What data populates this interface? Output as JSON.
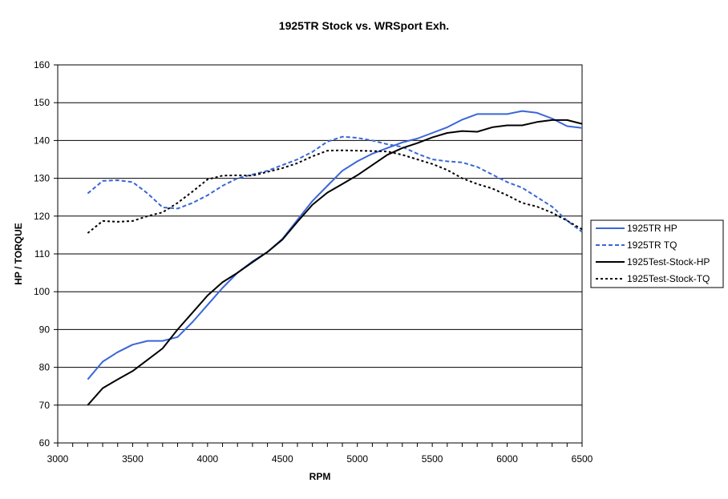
{
  "chart_data": {
    "type": "line",
    "title": "1925TR Stock vs. WRSport Exh.",
    "xlabel": "RPM",
    "ylabel": "HP / TORQUE",
    "xlim": [
      3000,
      6500
    ],
    "ylim": [
      60,
      160
    ],
    "xticks": [
      3000,
      3500,
      4000,
      4500,
      5000,
      5500,
      6000,
      6500
    ],
    "yticks": [
      60,
      70,
      80,
      90,
      100,
      110,
      120,
      130,
      140,
      150,
      160
    ],
    "grid": "horizontal",
    "legend_position": "right",
    "series": [
      {
        "name": "1925TR HP",
        "color": "#3a66d8",
        "style": "solid",
        "x": [
          3200,
          3300,
          3400,
          3500,
          3600,
          3700,
          3800,
          3900,
          4000,
          4100,
          4200,
          4300,
          4400,
          4500,
          4600,
          4700,
          4800,
          4900,
          5000,
          5100,
          5200,
          5300,
          5400,
          5500,
          5600,
          5700,
          5800,
          5900,
          6000,
          6100,
          6200,
          6300,
          6400,
          6500
        ],
        "values": [
          76.8,
          81.5,
          84,
          86,
          87,
          87,
          88,
          92,
          96.5,
          101,
          105,
          108,
          110.5,
          114,
          119,
          124,
          128,
          132,
          134.5,
          136.5,
          138,
          139.5,
          140.5,
          142,
          143.5,
          145.5,
          147,
          147,
          147,
          147.8,
          147.3,
          145.8,
          143.8,
          143.3
        ]
      },
      {
        "name": "1925TR TQ",
        "color": "#3a66d8",
        "style": "dashed",
        "x": [
          3200,
          3300,
          3400,
          3500,
          3600,
          3700,
          3800,
          3900,
          4000,
          4100,
          4200,
          4300,
          4400,
          4500,
          4600,
          4700,
          4800,
          4900,
          5000,
          5100,
          5200,
          5300,
          5400,
          5500,
          5600,
          5700,
          5800,
          5900,
          6000,
          6100,
          6200,
          6300,
          6400,
          6500
        ],
        "values": [
          126,
          129.3,
          129.5,
          129,
          126,
          122.3,
          122,
          123.5,
          125.5,
          128,
          130,
          131,
          132,
          133.5,
          135,
          137,
          139.7,
          141,
          140.7,
          140,
          139,
          138.3,
          136.5,
          135,
          134.5,
          134.2,
          133,
          131,
          129,
          127.5,
          125,
          122.5,
          118.8,
          115.8
        ]
      },
      {
        "name": "1925Test-Stock-HP",
        "color": "#000000",
        "style": "solid",
        "x": [
          3200,
          3300,
          3400,
          3500,
          3600,
          3700,
          3800,
          3900,
          4000,
          4100,
          4200,
          4300,
          4400,
          4500,
          4600,
          4700,
          4800,
          4900,
          5000,
          5100,
          5200,
          5300,
          5400,
          5500,
          5600,
          5700,
          5800,
          5900,
          6000,
          6100,
          6200,
          6300,
          6400,
          6500
        ],
        "values": [
          70,
          74.5,
          76.8,
          79,
          82,
          85,
          90,
          94.5,
          99,
          102.5,
          105,
          107.8,
          110.5,
          113.8,
          118.5,
          123,
          126.2,
          128.5,
          130.8,
          133.5,
          136.2,
          138,
          139.3,
          140.8,
          142,
          142.5,
          142.3,
          143.5,
          144,
          144,
          144.9,
          145.4,
          145.4,
          144.4
        ]
      },
      {
        "name": "1925Test-Stock-TQ",
        "color": "#000000",
        "style": "dotted",
        "x": [
          3200,
          3300,
          3400,
          3500,
          3600,
          3700,
          3800,
          3900,
          4000,
          4100,
          4200,
          4300,
          4400,
          4500,
          4600,
          4700,
          4800,
          4900,
          5000,
          5100,
          5200,
          5300,
          5400,
          5500,
          5600,
          5700,
          5800,
          5900,
          6000,
          6100,
          6200,
          6300,
          6400,
          6500
        ],
        "values": [
          115.5,
          118.7,
          118.5,
          118.7,
          120,
          121,
          123.5,
          126.5,
          129.7,
          130.7,
          130.8,
          130.7,
          131.7,
          132.7,
          134,
          135.8,
          137.3,
          137.4,
          137.3,
          137.2,
          137.1,
          136.2,
          135,
          133.8,
          132.2,
          130,
          128.5,
          127.3,
          125.5,
          123.5,
          122.5,
          120.9,
          118.8,
          116.5
        ]
      }
    ]
  }
}
